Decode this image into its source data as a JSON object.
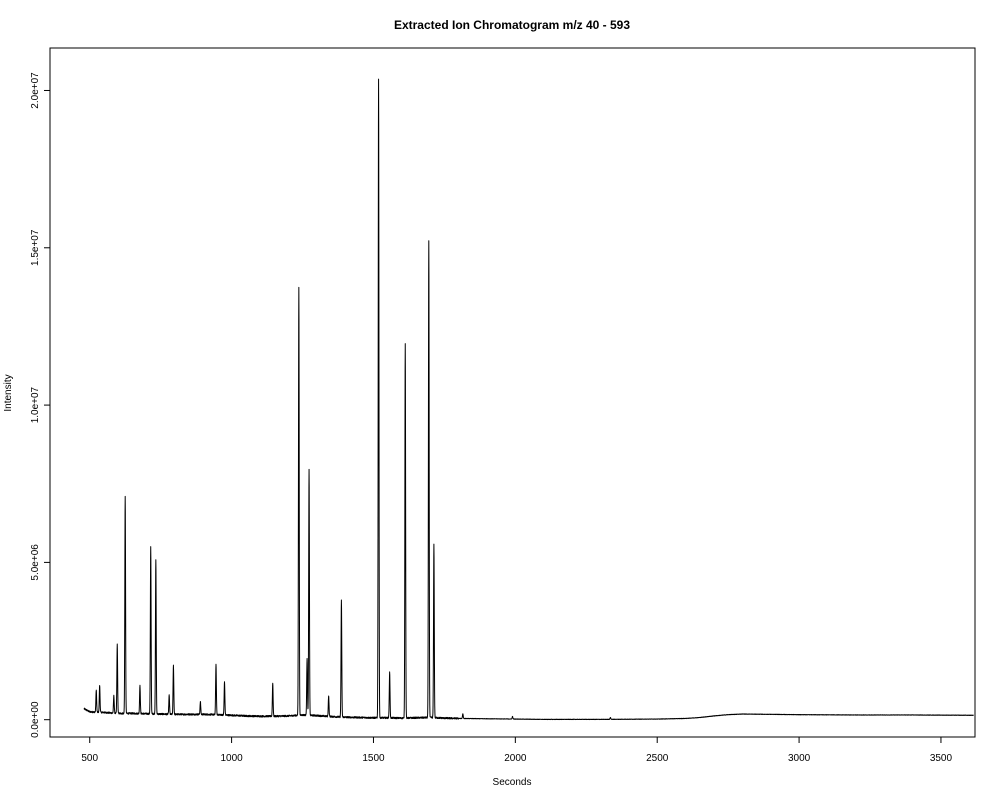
{
  "chart_data": {
    "type": "line",
    "title": "Extracted Ion Chromatogram  m/z  40 - 593",
    "xlabel": "Seconds",
    "ylabel": "Intensity",
    "xlim": [
      360,
      3620
    ],
    "ylim": [
      -550000,
      21350000
    ],
    "x_ticks": [
      {
        "value": 500,
        "label": "500"
      },
      {
        "value": 1000,
        "label": "1000"
      },
      {
        "value": 1500,
        "label": "1500"
      },
      {
        "value": 2000,
        "label": "2000"
      },
      {
        "value": 2500,
        "label": "2500"
      },
      {
        "value": 3000,
        "label": "3000"
      },
      {
        "value": 3500,
        "label": "3500"
      }
    ],
    "y_ticks": [
      {
        "value": 0,
        "label": "0.0e+00"
      },
      {
        "value": 5000000,
        "label": "5.0e+06"
      },
      {
        "value": 10000000,
        "label": "1.0e+07"
      },
      {
        "value": 15000000,
        "label": "1.5e+07"
      },
      {
        "value": 20000000,
        "label": "2.0e+07"
      }
    ],
    "grid": false,
    "line_color": "#000000",
    "x_range": [
      480,
      3615
    ],
    "baseline_points": [
      [
        480,
        350000
      ],
      [
        500,
        250000
      ],
      [
        550,
        230000
      ],
      [
        600,
        200000
      ],
      [
        650,
        200000
      ],
      [
        700,
        190000
      ],
      [
        750,
        180000
      ],
      [
        800,
        170000
      ],
      [
        850,
        170000
      ],
      [
        900,
        170000
      ],
      [
        950,
        160000
      ],
      [
        1000,
        140000
      ],
      [
        1050,
        120000
      ],
      [
        1100,
        110000
      ],
      [
        1150,
        110000
      ],
      [
        1200,
        120000
      ],
      [
        1250,
        150000
      ],
      [
        1300,
        130000
      ],
      [
        1350,
        100000
      ],
      [
        1400,
        80000
      ],
      [
        1450,
        70000
      ],
      [
        1500,
        60000
      ],
      [
        1550,
        60000
      ],
      [
        1600,
        50000
      ],
      [
        1650,
        60000
      ],
      [
        1700,
        70000
      ],
      [
        1750,
        50000
      ],
      [
        1800,
        40000
      ],
      [
        1900,
        30000
      ],
      [
        2000,
        20000
      ],
      [
        2100,
        10000
      ],
      [
        2200,
        10000
      ],
      [
        2300,
        10000
      ],
      [
        2400,
        15000
      ],
      [
        2500,
        20000
      ],
      [
        2600,
        40000
      ],
      [
        2650,
        70000
      ],
      [
        2700,
        120000
      ],
      [
        2750,
        160000
      ],
      [
        2800,
        180000
      ],
      [
        2900,
        170000
      ],
      [
        3000,
        160000
      ],
      [
        3200,
        150000
      ],
      [
        3400,
        150000
      ],
      [
        3615,
        140000
      ]
    ],
    "peaks": [
      {
        "rt": 523,
        "height": 700000
      },
      {
        "rt": 535,
        "height": 850000
      },
      {
        "rt": 585,
        "height": 550000
      },
      {
        "rt": 597,
        "height": 2200000
      },
      {
        "rt": 625,
        "height": 6900000
      },
      {
        "rt": 677,
        "height": 900000
      },
      {
        "rt": 715,
        "height": 5300000
      },
      {
        "rt": 733,
        "height": 4900000
      },
      {
        "rt": 780,
        "height": 600000
      },
      {
        "rt": 795,
        "height": 1550000
      },
      {
        "rt": 890,
        "height": 400000
      },
      {
        "rt": 945,
        "height": 1600000
      },
      {
        "rt": 975,
        "height": 1050000
      },
      {
        "rt": 1145,
        "height": 1050000
      },
      {
        "rt": 1237,
        "height": 13600000
      },
      {
        "rt": 1266,
        "height": 1800000
      },
      {
        "rt": 1273,
        "height": 7800000
      },
      {
        "rt": 1342,
        "height": 650000
      },
      {
        "rt": 1387,
        "height": 3700000
      },
      {
        "rt": 1518,
        "height": 20300000
      },
      {
        "rt": 1557,
        "height": 1450000
      },
      {
        "rt": 1612,
        "height": 11900000
      },
      {
        "rt": 1695,
        "height": 15150000
      },
      {
        "rt": 1713,
        "height": 5500000
      },
      {
        "rt": 1815,
        "height": 150000
      },
      {
        "rt": 1990,
        "height": 80000
      },
      {
        "rt": 2335,
        "height": 60000
      }
    ]
  }
}
